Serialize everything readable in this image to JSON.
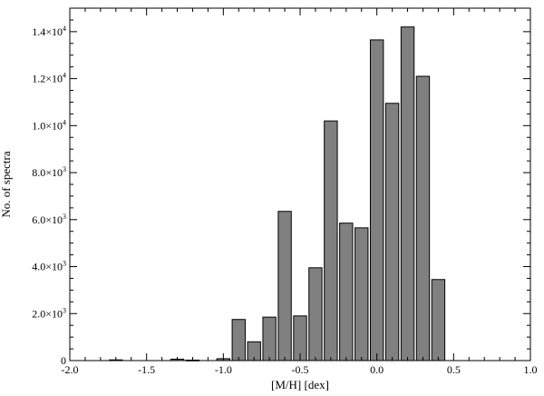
{
  "chart_data": {
    "type": "bar",
    "xlabel": "[M/H] [dex]",
    "ylabel": "No. of spectra",
    "xlim": [
      -2.0,
      1.0
    ],
    "ylim": [
      0,
      15000
    ],
    "bar_width": 0.085,
    "grid": false,
    "x_ticks": [
      {
        "value": -2.0,
        "label": "-2.0"
      },
      {
        "value": -1.5,
        "label": "-1.5"
      },
      {
        "value": -1.0,
        "label": "-1.0"
      },
      {
        "value": -0.5,
        "label": "-0.5"
      },
      {
        "value": 0.0,
        "label": "0.0"
      },
      {
        "value": 0.5,
        "label": "0.5"
      },
      {
        "value": 1.0,
        "label": "1.0"
      }
    ],
    "y_ticks": [
      {
        "value": 0,
        "label": "0",
        "exp": ""
      },
      {
        "value": 2000,
        "label": "2.0×10",
        "exp": "3"
      },
      {
        "value": 4000,
        "label": "4.0×10",
        "exp": "3"
      },
      {
        "value": 6000,
        "label": "6.0×10",
        "exp": "3"
      },
      {
        "value": 8000,
        "label": "8.0×10",
        "exp": "3"
      },
      {
        "value": 10000,
        "label": "1.0×10",
        "exp": "4"
      },
      {
        "value": 12000,
        "label": "1.2×10",
        "exp": "4"
      },
      {
        "value": 14000,
        "label": "1.4×10",
        "exp": "4"
      }
    ],
    "x": [
      -1.7,
      -1.3,
      -1.2,
      -1.0,
      -0.9,
      -0.8,
      -0.7,
      -0.6,
      -0.5,
      -0.4,
      -0.3,
      -0.2,
      -0.1,
      0.0,
      0.1,
      0.2,
      0.3,
      0.4
    ],
    "values": [
      30,
      60,
      20,
      80,
      1750,
      800,
      1850,
      6350,
      1900,
      3950,
      10200,
      5850,
      5650,
      13650,
      10950,
      14200,
      12100,
      3450
    ],
    "bar_color": "#808080",
    "edge_color": "#000000"
  }
}
